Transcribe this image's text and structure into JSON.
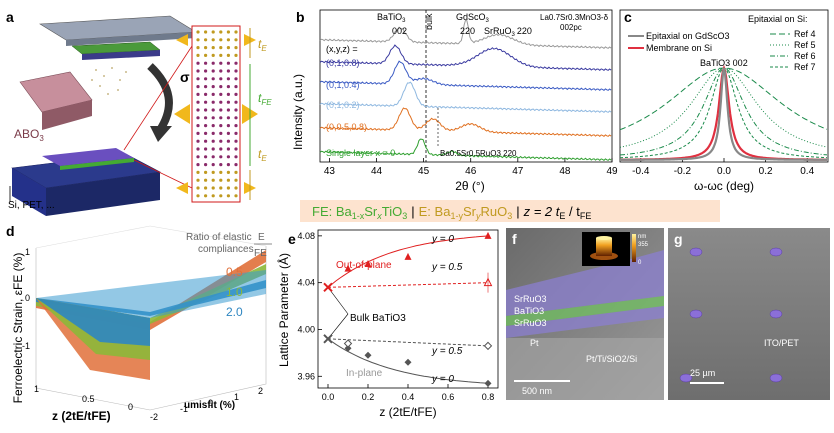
{
  "colors": {
    "p001": "#e8302a",
    "p010": "#8fb8e0",
    "p0104": "#3b5bc4",
    "p0108": "#3a3aa0",
    "p00508": "#e07020",
    "single": "#30a030",
    "tE": "#c09a20",
    "tFE": "#44aa33",
    "strain05": "#e0703a",
    "strain10": "#8cb83a",
    "strain20": "#2e86c1",
    "sem_purple": "#8b7fd0",
    "ref": "#1a8a4a",
    "gdsco": "#888888",
    "member": "#e03040",
    "outplane": "#e02020",
    "inplane": "#555555",
    "formula_bg": "#fde3cf"
  },
  "panel_a": {
    "letter": "a",
    "label_abo3": "ABO",
    "label_abo3_sub": "3",
    "label_substrates": "Si, PET, ...",
    "sigma": "σ",
    "tE_top": "t",
    "tE_sub": "E",
    "tFE": "t",
    "tFE_sub": "FE",
    "tE_bottom": "t",
    "tE_bottom_sub": "E"
  },
  "panel_b": {
    "letter": "b",
    "ylabel": "Intensity (a.u.)",
    "xlabel": "2θ (°)",
    "xticks": [
      "43",
      "44",
      "45",
      "46",
      "47",
      "48",
      "49"
    ],
    "annot_batio3": "BaTiO",
    "annot_batio3_sub": "3",
    "annot_batio3_hkl": "002",
    "annot_bulk": "bulk",
    "annot_gdsco3": "GdScO",
    "annot_gdsco3_sub": "3",
    "annot_gdsco3_hkl": "220",
    "annot_srruo3": "SrRuO",
    "annot_srruo3_sub": "3",
    "annot_srruo3_hkl": "220",
    "annot_lsmo": "La0.7Sr0.3MnO3-δ",
    "annot_lsmo_hkl": "002pc",
    "annot_basr": "Ba0.5Sr0.5RuO3 220",
    "legend_xyz": "(x,y,z) =",
    "series_labels": [
      "(0,1,0.8)",
      "(0,1,0.4)",
      "(0,1,0.2)",
      "(0,0.5,0.8)",
      "Single layer x = 0"
    ]
  },
  "panel_c": {
    "letter": "c",
    "xlabel": "ω-ωc (deg)",
    "xticks": [
      "-0.4",
      "-0.2",
      "0.0",
      "0.2",
      "0.4"
    ],
    "title_epitaxial": "Epitaxial on Si:",
    "legend_gdsco3": "Epitaxial on GdScO3",
    "legend_membrane": "Membrane on Si",
    "legend_refs": [
      "Ref 4",
      "Ref 5",
      "Ref 6",
      "Ref 7"
    ],
    "annot_batio3": "BaTiO3 002"
  },
  "formula": {
    "fe": "FE: Ba",
    "fe_sub1": "1-x",
    "fe_mid": "Sr",
    "fe_sub2": "x",
    "fe_end": "TiO",
    "fe_sub3": "3",
    "sep": "|",
    "e": "E: Ba",
    "e_sub1": "1-y",
    "e_mid": "Sr",
    "e_sub2": "y",
    "e_end": "RuO",
    "e_sub3": "3",
    "sep2": "|",
    "z": "z = 2 t",
    "z_sub1": "E",
    "z_slash": " / t",
    "z_sub2": "FE"
  },
  "panel_d": {
    "letter": "d",
    "ylabel": "Ferroelectric Strain, εFE (%)",
    "yticks": [
      "1",
      "0",
      "-1"
    ],
    "ratio_title": "Ratio of elastic",
    "ratio_title2": "compliances",
    "ratio_E": "E",
    "ratio_FE": "FE",
    "ratio_values": [
      "0.5",
      "1.0",
      "2.0"
    ],
    "z_ticks": [
      "1",
      "0.5",
      "0"
    ],
    "u_ticks": [
      "-2",
      "-1",
      "0",
      "1",
      "2"
    ],
    "xlabel_z": "z (2tE/tFE)",
    "xlabel_u": "umisfit (%)"
  },
  "panel_e": {
    "letter": "e",
    "ylabel": "Lattice Parameter (Å)",
    "xlabel": "z (2tE/tFE)",
    "yticks": [
      "4.08",
      "4.04",
      "4.00",
      "3.96"
    ],
    "xticks": [
      "0.0",
      "0.2",
      "0.4",
      "0.6",
      "0.8"
    ],
    "label_outplane": "Out-of-plane",
    "label_inplane": "In-plane",
    "label_bulk": "Bulk BaTiO3",
    "y0_top": "y = 0",
    "y05_top": "y = 0.5",
    "y05_bot": "y = 0.5",
    "y0_bot": "y = 0",
    "chart_data": {
      "type": "scatter",
      "series": [
        {
          "name": "Out-of-plane y=0",
          "x": [
            0.0,
            0.1,
            0.2,
            0.4,
            0.8
          ],
          "y": [
            4.036,
            4.052,
            4.056,
            4.062,
            4.08
          ]
        },
        {
          "name": "Out-of-plane y=0.5",
          "x": [
            0.0,
            0.8
          ],
          "y": [
            4.036,
            4.04
          ]
        },
        {
          "name": "In-plane y=0",
          "x": [
            0.0,
            0.1,
            0.2,
            0.4,
            0.8
          ],
          "y": [
            3.992,
            3.984,
            3.978,
            3.972,
            3.954
          ]
        },
        {
          "name": "In-plane y=0.5",
          "x": [
            0.0,
            0.1,
            0.8
          ],
          "y": [
            3.992,
            3.988,
            3.986
          ]
        }
      ],
      "bulk_c": 4.036,
      "bulk_a": 3.992,
      "xlim": [
        -0.05,
        0.85
      ],
      "ylim": [
        3.95,
        4.085
      ]
    }
  },
  "panel_f": {
    "letter": "f",
    "layer1": "SrRuO3",
    "layer2": "BaTiO3",
    "layer3": "SrRuO3",
    "layer4": "Pt",
    "stack": "Pt/Ti/SiO2/Si",
    "scalebar": "500 nm",
    "afm_unit": "nm",
    "afm_max": "355",
    "afm_min": "0"
  },
  "panel_g": {
    "letter": "g",
    "substrate": "ITO/PET",
    "scalebar": "25 µm"
  }
}
